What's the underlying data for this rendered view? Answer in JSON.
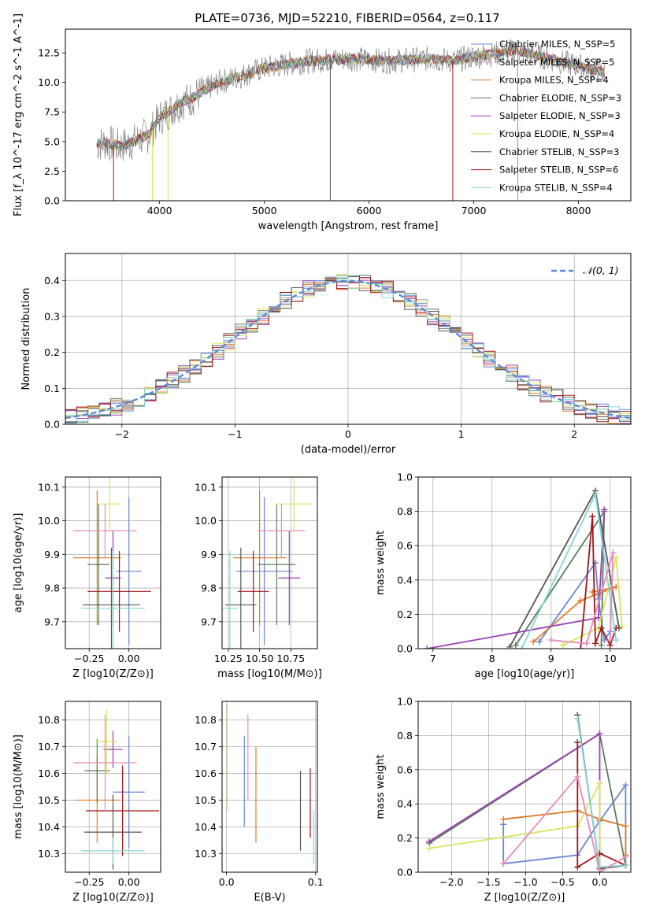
{
  "title": "PLATE=0736, MJD=52210, FIBERID=0564, z=0.117",
  "colors": {
    "chabrier_miles": "#6a87d6",
    "salpeter_miles": "#a0a0a0",
    "kroupa_miles": "#e07b2a",
    "chabrier_elodie": "#5a7d5a",
    "salpeter_elodie": "#9b3fb5",
    "kroupa_elodie": "#d8e65a",
    "chabrier_stelib": "#555555",
    "salpeter_stelib": "#a01818",
    "kroupa_stelib": "#86d6d6",
    "pink": "#e58bbd",
    "normal": "#5b8bd6",
    "grid": "#b0b0b0"
  },
  "chart_data": [
    {
      "id": "spectrum",
      "type": "line",
      "xlabel": "wavelength [Angstrom, rest frame]",
      "ylabel": "Flux [f_λ 10^-17 erg cm^-2 s^-1 A^-1]",
      "xlim": [
        3100,
        8500
      ],
      "ylim": [
        0,
        14.5
      ],
      "xticks": [
        4000,
        5000,
        6000,
        7000,
        8000
      ],
      "yticks": [
        0.0,
        2.5,
        5.0,
        7.5,
        10.0,
        12.5
      ],
      "legend_position": "right",
      "legend": [
        "Chabrier MILES, N_SSP=5",
        "Salpeter MILES, N_SSP=5",
        "Kroupa MILES, N_SSP=4",
        "Chabrier ELODIE, N_SSP=3",
        "Salpeter ELODIE, N_SSP=3",
        "Kroupa ELODIE, N_SSP=4",
        "Chabrier STELIB, N_SSP=3",
        "Salpeter STELIB, N_SSP=6",
        "Kroupa STELIB, N_SSP=4"
      ],
      "continuum": {
        "x": [
          3400,
          3500,
          3600,
          3700,
          3800,
          3900,
          4000,
          4100,
          4200,
          4300,
          4400,
          4500,
          4600,
          4800,
          5000,
          5200,
          5400,
          5600,
          5800,
          6000,
          6200,
          6400,
          6600,
          6800,
          7000,
          7200,
          7400,
          7600,
          7800,
          8000,
          8250
        ],
        "y": [
          4.8,
          4.9,
          4.6,
          4.8,
          5.2,
          5.6,
          7.0,
          7.6,
          8.3,
          8.6,
          9.2,
          9.7,
          10.1,
          10.6,
          11.2,
          11.5,
          11.8,
          11.9,
          12.0,
          11.9,
          11.8,
          11.9,
          12.0,
          11.8,
          12.2,
          12.4,
          12.7,
          12.3,
          11.8,
          11.4,
          10.8
        ]
      }
    },
    {
      "id": "residuals",
      "type": "line",
      "xlabel": "(data-model)/error",
      "ylabel": "Normed distribution",
      "xlim": [
        -2.5,
        2.5
      ],
      "ylim": [
        0,
        0.475
      ],
      "xticks": [
        -2,
        -1,
        0,
        1,
        2
      ],
      "yticks": [
        0.0,
        0.1,
        0.2,
        0.3,
        0.4
      ],
      "legend": [
        "𝒩(0, 1)"
      ],
      "legend_position": "top-right",
      "normal_mu": 0,
      "normal_sigma": 1
    },
    {
      "id": "age_vs_Z",
      "type": "scatter",
      "xlabel": "Z [log10(Z/Z⊙)]",
      "ylabel": "age [log10(age/yr)]",
      "xlim": [
        -0.4,
        0.2
      ],
      "ylim": [
        9.62,
        10.13
      ],
      "xticks": [
        -0.25,
        0.0
      ],
      "xticklabels": [
        "−0.25",
        "0.00"
      ],
      "yticks": [
        9.7,
        9.8,
        9.9,
        10.0,
        10.1
      ],
      "points": [
        {
          "color": "chabrier_miles",
          "x": 0.0,
          "y": 9.85,
          "xerr": 0.08,
          "yerr": 0.22
        },
        {
          "color": "kroupa_miles",
          "x": -0.2,
          "y": 9.89,
          "xerr": 0.15,
          "yerr": 0.2
        },
        {
          "color": "chabrier_elodie",
          "x": -0.19,
          "y": 9.87,
          "xerr": 0.07,
          "yerr": 0.18
        },
        {
          "color": "salpeter_elodie",
          "x": -0.1,
          "y": 9.83,
          "xerr": 0.05,
          "yerr": 0.14
        },
        {
          "color": "kroupa_elodie",
          "x": -0.12,
          "y": 10.05,
          "xerr": 0.07,
          "yerr": 0.08
        },
        {
          "color": "chabrier_stelib",
          "x": -0.11,
          "y": 9.75,
          "xerr": 0.18,
          "yerr": 0.17
        },
        {
          "color": "salpeter_stelib",
          "x": -0.06,
          "y": 9.79,
          "xerr": 0.2,
          "yerr": 0.12
        },
        {
          "color": "kroupa_stelib",
          "x": -0.1,
          "y": 9.74,
          "xerr": 0.2,
          "yerr": 0.17
        },
        {
          "color": "pink",
          "x": -0.15,
          "y": 9.97,
          "xerr": 0.2,
          "yerr": 0.08
        }
      ]
    },
    {
      "id": "age_vs_mass",
      "type": "scatter",
      "xlabel": "mass [log10(M/M⊙)]",
      "ylabel": "",
      "xlim": [
        10.26,
        10.87
      ],
      "ylim": [
        9.62,
        10.13
      ],
      "xticks": [
        10.3,
        10.5,
        10.7
      ],
      "xticklabels": [
        "10.25",
        "10.50",
        "10.75"
      ],
      "yticks": [
        9.7,
        9.8,
        9.9,
        10.0,
        10.1
      ],
      "points": [
        {
          "color": "chabrier_miles",
          "x": 10.53,
          "y": 9.85,
          "xerr": 0.18,
          "yerr": 0.22
        },
        {
          "color": "kroupa_miles",
          "x": 10.5,
          "y": 9.89,
          "xerr": 0.17,
          "yerr": 0.2
        },
        {
          "color": "chabrier_elodie",
          "x": 10.61,
          "y": 9.87,
          "xerr": 0.12,
          "yerr": 0.18
        },
        {
          "color": "salpeter_elodie",
          "x": 10.69,
          "y": 9.83,
          "xerr": 0.07,
          "yerr": 0.14
        },
        {
          "color": "kroupa_elodie",
          "x": 10.72,
          "y": 10.05,
          "xerr": 0.12,
          "yerr": 0.08
        },
        {
          "color": "chabrier_stelib",
          "x": 10.38,
          "y": 9.75,
          "xerr": 0.1,
          "yerr": 0.17
        },
        {
          "color": "salpeter_stelib",
          "x": 10.46,
          "y": 9.79,
          "xerr": 0.1,
          "yerr": 0.12
        },
        {
          "color": "kroupa_stelib",
          "x": 10.31,
          "y": 9.74,
          "xerr": 0.05,
          "yerr": 0.17
        },
        {
          "color": "pink",
          "x": 10.64,
          "y": 9.97,
          "xerr": 0.15,
          "yerr": 0.08
        }
      ]
    },
    {
      "id": "weight_vs_age",
      "type": "line",
      "xlabel": "age [log10(age/yr)]",
      "ylabel": "mass weight",
      "xlim": [
        6.75,
        10.35
      ],
      "ylim": [
        0,
        1.0
      ],
      "xticks": [
        7,
        8,
        9,
        10
      ],
      "yticks": [
        0.0,
        0.2,
        0.4,
        0.6,
        0.8,
        1.0
      ],
      "series": [
        {
          "color": "chabrier_miles",
          "x": [
            8.8,
            9.75,
            9.8,
            9.9,
            10.0
          ],
          "y": [
            0.04,
            0.5,
            0.29,
            0.05,
            0.1
          ]
        },
        {
          "color": "kroupa_miles",
          "x": [
            8.7,
            9.5,
            10.1,
            9.7
          ],
          "y": [
            0.04,
            0.28,
            0.36,
            0.33
          ]
        },
        {
          "color": "chabrier_elodie",
          "x": [
            8.4,
            9.9,
            9.85
          ],
          "y": [
            0.02,
            0.8,
            0.02
          ]
        },
        {
          "color": "salpeter_elodie",
          "x": [
            6.9,
            9.8,
            9.9
          ],
          "y": [
            0.0,
            0.18,
            0.81
          ]
        },
        {
          "color": "kroupa_elodie",
          "x": [
            9.2,
            9.8,
            10.1,
            10.2
          ],
          "y": [
            0.02,
            0.12,
            0.53,
            0.13
          ]
        },
        {
          "color": "chabrier_stelib",
          "x": [
            8.3,
            9.75,
            10.15
          ],
          "y": [
            0.01,
            0.92,
            0.12
          ]
        },
        {
          "color": "salpeter_stelib",
          "x": [
            9.5,
            9.7,
            9.75,
            9.85,
            10.0,
            10.1
          ],
          "y": [
            0.0,
            0.77,
            0.03,
            0.12,
            0.02,
            0.12
          ]
        },
        {
          "color": "kroupa_stelib",
          "x": [
            8.5,
            9.75,
            10.1
          ],
          "y": [
            0.0,
            0.9,
            0.05
          ]
        },
        {
          "color": "pink",
          "x": [
            9.0,
            9.6,
            10.05,
            10.0
          ],
          "y": [
            0.05,
            0.03,
            0.56,
            0.05
          ]
        }
      ]
    },
    {
      "id": "mass_vs_Z",
      "type": "scatter",
      "xlabel": "Z [log10(Z/Z⊙)]",
      "ylabel": "mass [log10(M/M⊙)]",
      "xlim": [
        -0.4,
        0.2
      ],
      "ylim": [
        10.23,
        10.87
      ],
      "xticks": [
        -0.25,
        0.0
      ],
      "xticklabels": [
        "−0.25",
        "0.00"
      ],
      "yticks": [
        10.3,
        10.4,
        10.5,
        10.6,
        10.7,
        10.8
      ],
      "points": [
        {
          "color": "chabrier_miles",
          "x": 0.0,
          "y": 10.53,
          "xerr": 0.1,
          "yerr": 0.21
        },
        {
          "color": "kroupa_miles",
          "x": -0.2,
          "y": 10.5,
          "xerr": 0.14,
          "yerr": 0.16
        },
        {
          "color": "chabrier_elodie",
          "x": -0.2,
          "y": 10.61,
          "xerr": 0.08,
          "yerr": 0.12
        },
        {
          "color": "salpeter_elodie",
          "x": -0.1,
          "y": 10.69,
          "xerr": 0.06,
          "yerr": 0.07
        },
        {
          "color": "kroupa_elodie",
          "x": -0.14,
          "y": 10.72,
          "xerr": 0.07,
          "yerr": 0.12
        },
        {
          "color": "chabrier_stelib",
          "x": -0.1,
          "y": 10.38,
          "xerr": 0.18,
          "yerr": 0.14
        },
        {
          "color": "salpeter_stelib",
          "x": -0.04,
          "y": 10.46,
          "xerr": 0.23,
          "yerr": 0.17
        },
        {
          "color": "kroupa_stelib",
          "x": -0.1,
          "y": 10.31,
          "xerr": 0.2,
          "yerr": 0.05
        },
        {
          "color": "pink",
          "x": -0.15,
          "y": 10.64,
          "xerr": 0.2,
          "yerr": 0.18
        }
      ]
    },
    {
      "id": "mass_vs_ebv",
      "type": "scatter",
      "xlabel": "E(B-V)",
      "ylabel": "",
      "xlim": [
        -0.005,
        0.102
      ],
      "ylim": [
        10.23,
        10.87
      ],
      "xticks": [
        0.0,
        0.1
      ],
      "xticklabels": [
        "0.0",
        "0.1"
      ],
      "yticks": [
        10.3,
        10.4,
        10.5,
        10.6,
        10.7,
        10.8
      ],
      "points": [
        {
          "color": "kroupa_elodie",
          "x": 0.001,
          "y": 10.66,
          "xerr": 0.0,
          "yerr": 0.2
        },
        {
          "color": "chabrier_miles",
          "x": 0.02,
          "y": 10.57,
          "xerr": 0.0,
          "yerr": 0.17
        },
        {
          "color": "pink",
          "x": 0.024,
          "y": 10.66,
          "xerr": 0.0,
          "yerr": 0.16
        },
        {
          "color": "kroupa_miles",
          "x": 0.033,
          "y": 10.52,
          "xerr": 0.0,
          "yerr": 0.18
        },
        {
          "color": "chabrier_stelib",
          "x": 0.083,
          "y": 10.46,
          "xerr": 0.0,
          "yerr": 0.15
        },
        {
          "color": "salpeter_stelib",
          "x": 0.094,
          "y": 10.49,
          "xerr": 0.0,
          "yerr": 0.13
        },
        {
          "color": "kroupa_stelib",
          "x": 0.098,
          "y": 10.36,
          "xerr": 0.0,
          "yerr": 0.1
        }
      ]
    },
    {
      "id": "weight_vs_Z",
      "type": "line",
      "xlabel": "Z [log10(Z/Z⊙)]",
      "ylabel": "mass weight",
      "xlim": [
        -2.45,
        0.42
      ],
      "ylim": [
        0,
        1.0
      ],
      "xticks": [
        -2.0,
        -1.5,
        -1.0,
        -0.5,
        0.0
      ],
      "xticklabels": [
        "−2.0",
        "−1.5",
        "−1.0",
        "−0.5",
        "0.0"
      ],
      "yticks": [
        0.0,
        0.2,
        0.4,
        0.6,
        0.8,
        1.0
      ],
      "series": [
        {
          "color": "chabrier_miles",
          "x": [
            -1.3,
            -1.3,
            -0.3,
            0.0,
            0.35,
            0.35
          ],
          "y": [
            0.28,
            0.05,
            0.1,
            0.3,
            0.51,
            0.04
          ]
        },
        {
          "color": "kroupa_miles",
          "x": [
            -1.3,
            -0.3,
            0.0,
            0.35,
            0.35
          ],
          "y": [
            0.31,
            0.36,
            0.31,
            0.27,
            0.1
          ]
        },
        {
          "color": "chabrier_elodie",
          "x": [
            -2.3,
            0.0,
            0.35
          ],
          "y": [
            0.17,
            0.81,
            0.04
          ]
        },
        {
          "color": "salpeter_elodie",
          "x": [
            -2.3,
            0.0,
            0.0
          ],
          "y": [
            0.18,
            0.81,
            0.02
          ]
        },
        {
          "color": "kroupa_elodie",
          "x": [
            -2.3,
            -0.3,
            0.0,
            0.0
          ],
          "y": [
            0.14,
            0.27,
            0.52,
            0.02
          ]
        },
        {
          "color": "chabrier_stelib",
          "x": [
            -0.3,
            0.0,
            0.35
          ],
          "y": [
            0.92,
            0.02,
            0.04
          ]
        },
        {
          "color": "salpeter_stelib",
          "x": [
            -0.3,
            -0.3,
            0.0,
            0.35
          ],
          "y": [
            0.76,
            0.03,
            0.11,
            0.04
          ]
        },
        {
          "color": "kroupa_stelib",
          "x": [
            -0.3,
            0.0,
            0.35
          ],
          "y": [
            0.9,
            0.03,
            0.04
          ]
        },
        {
          "color": "pink",
          "x": [
            -1.3,
            -0.3,
            0.0,
            0.35
          ],
          "y": [
            0.05,
            0.56,
            0.0,
            0.09
          ]
        }
      ]
    }
  ]
}
